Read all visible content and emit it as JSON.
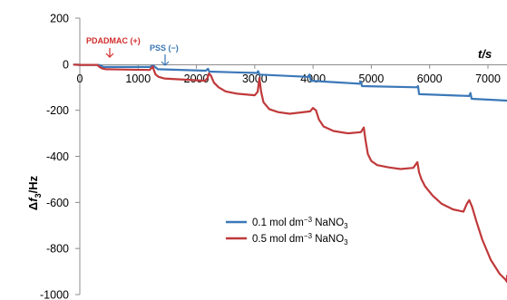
{
  "chart_data": {
    "type": "line",
    "xlabel": "t/s",
    "ylabel": "Δf3/Hz",
    "xlim": [
      -100,
      7600
    ],
    "ylim": [
      -1000,
      200
    ],
    "x_ticks": [
      0,
      1000,
      2000,
      3000,
      4000,
      5000,
      6000,
      7000
    ],
    "y_ticks": [
      200,
      0,
      -200,
      -400,
      -600,
      -800,
      -1000
    ],
    "grid": false,
    "legend": "center",
    "legend_entries": [
      {
        "label": "0.1 mol dm",
        "sup": "−3",
        "tail": " NaNO",
        "sub": "3"
      },
      {
        "label": "0.5 mol dm",
        "sup": "−3",
        "tail": " NaNO",
        "sub": "3"
      }
    ],
    "annotations": [
      {
        "text": "PDADMAC (+)",
        "x": 600,
        "color": "#d12d2d"
      },
      {
        "text": "PSS (−)",
        "x": 1550,
        "color": "#3a76b5"
      }
    ],
    "series": [
      {
        "name": "0.1 mol dm−3 NaNO3",
        "color": "#3b78b8",
        "x": [
          -100,
          0,
          320,
          380,
          400,
          1200,
          1260,
          1280,
          1320,
          1340,
          2160,
          2200,
          2220,
          3040,
          3060,
          3080,
          3920,
          3940,
          3960,
          4800,
          4820,
          4840,
          5780,
          5800,
          5820,
          6680,
          6700,
          6720,
          7600
        ],
        "y": [
          -2,
          -3,
          -3,
          -8,
          -12,
          -12,
          -5,
          -10,
          -18,
          -22,
          -28,
          -20,
          -32,
          -38,
          -30,
          -45,
          -55,
          -45,
          -72,
          -85,
          -75,
          -95,
          -100,
          -95,
          -130,
          -138,
          -125,
          -150,
          -158
        ]
      },
      {
        "name": "0.5 mol dm−3 NaNO3",
        "color": "#c0393b",
        "x": [
          -100,
          0,
          300,
          330,
          380,
          450,
          1200,
          1250,
          1270,
          1300,
          1350,
          1450,
          2150,
          2190,
          2215,
          2250,
          2300,
          2380,
          2500,
          2700,
          3000,
          3050,
          3080,
          3110,
          3150,
          3250,
          3400,
          3600,
          3950,
          4000,
          4050,
          4100,
          4180,
          4350,
          4600,
          4820,
          4870,
          4900,
          4940,
          5000,
          5100,
          5300,
          5500,
          5720,
          5790,
          5820,
          5860,
          5920,
          6050,
          6200,
          6400,
          6580,
          6640,
          6680,
          6730,
          6800,
          6900,
          7050,
          7200,
          7300,
          7400,
          7450,
          7500,
          7550,
          7600
        ],
        "y": [
          -2,
          -3,
          -3,
          -10,
          -18,
          -22,
          -25,
          -10,
          -25,
          -45,
          -55,
          -62,
          -72,
          -60,
          -40,
          -50,
          -80,
          -100,
          -118,
          -128,
          -135,
          -120,
          -60,
          -120,
          -165,
          -195,
          -208,
          -215,
          -205,
          -190,
          -200,
          -240,
          -270,
          -290,
          -300,
          -295,
          -275,
          -330,
          -390,
          -420,
          -438,
          -448,
          -455,
          -450,
          -425,
          -470,
          -500,
          -530,
          -570,
          -605,
          -630,
          -640,
          -605,
          -590,
          -620,
          -680,
          -760,
          -850,
          -910,
          -935,
          -945,
          -930,
          -925,
          -920,
          -918
        ]
      }
    ]
  }
}
